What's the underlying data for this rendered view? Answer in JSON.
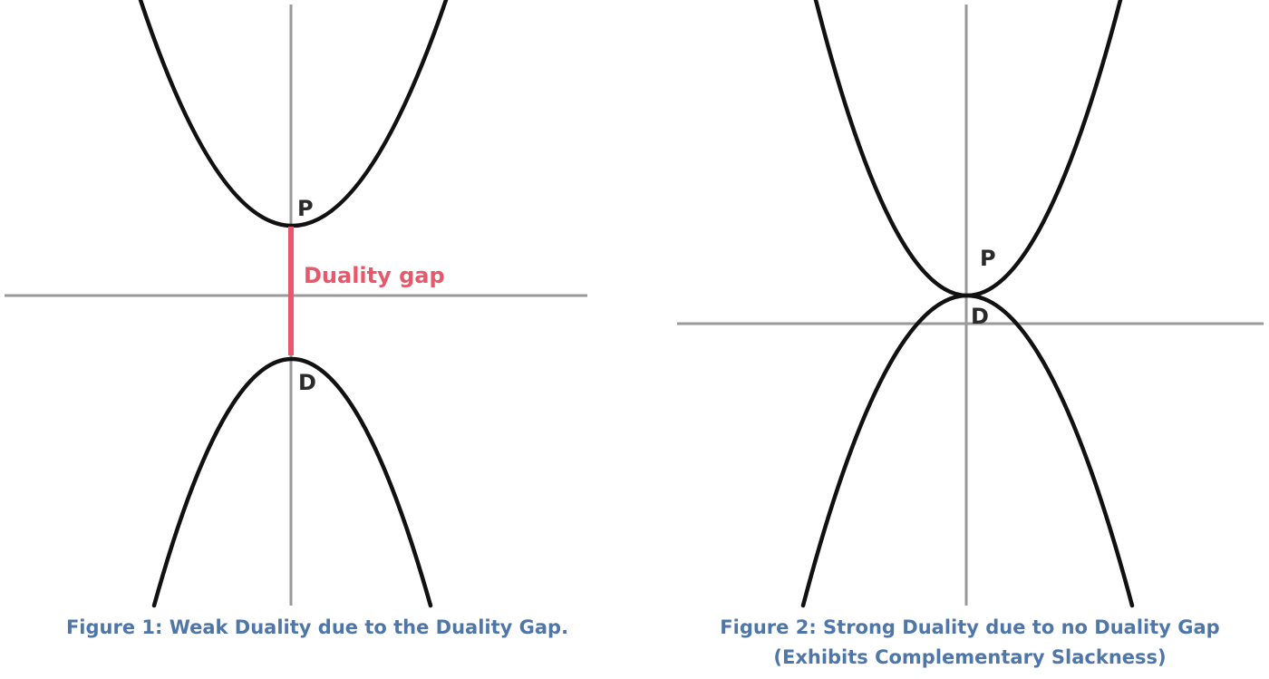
{
  "figure1": {
    "p_label": "P",
    "d_label": "D",
    "gap_label": "Duality gap",
    "caption": "Figure 1: Weak Duality due to the Duality Gap."
  },
  "figure2": {
    "p_label": "P",
    "d_label": "D",
    "caption_line1": "Figure 2: Strong Duality due to no Duality Gap",
    "caption_line2": "(Exhibits Complementary Slackness)"
  },
  "colors": {
    "axis": "#9a9a9a",
    "curve": "#111111",
    "gap": "#e8576a",
    "caption": "#4f76a8"
  }
}
